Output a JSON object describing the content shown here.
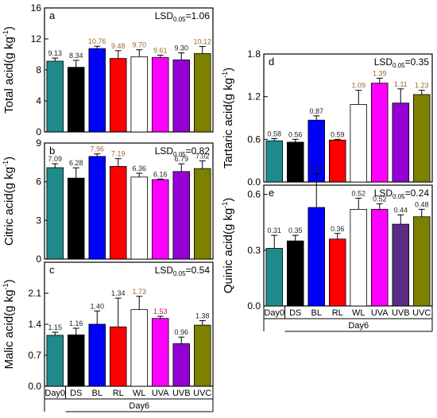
{
  "colors": {
    "label_dark": "#222222",
    "label_brown": "#a0682a",
    "label_magenta": "#c0146e"
  },
  "x_axis": {
    "day0_label": "Day0",
    "day6_label": "Day6",
    "categories": [
      "Day0",
      "DS",
      "BL",
      "RL",
      "WL",
      "UVA",
      "UVB",
      "UVC"
    ]
  },
  "chart_data": [
    {
      "type": "bar",
      "panel": "a",
      "ylabel": "Total acid(g kg-1)",
      "ylim": [
        0,
        16
      ],
      "yticks": [
        0,
        4,
        8,
        12,
        16
      ],
      "lsd": "LSD0.05=1.06",
      "categories": [
        "Day0",
        "DS",
        "BL",
        "RL",
        "WL",
        "UVA",
        "UVB",
        "UVC"
      ],
      "values": [
        9.13,
        8.34,
        10.76,
        9.48,
        9.7,
        9.61,
        9.3,
        10.12
      ],
      "errors": [
        0.4,
        0.9,
        0.3,
        1.0,
        0.9,
        0.3,
        0.9,
        0.9
      ],
      "value_labels": [
        "9.13",
        "8.34",
        "10.76",
        "9.48",
        "9.70",
        "9.61",
        "9.30",
        "10.12"
      ],
      "bar_colors": [
        "#1f8a8a",
        "#000000",
        "#0000ff",
        "#ff0000",
        "#ffffff",
        "#ff00ff",
        "#9400d3",
        "#7f7f00"
      ]
    },
    {
      "type": "bar",
      "panel": "b",
      "ylabel": "Citric acid(g kg-1)",
      "ylim": [
        0,
        9
      ],
      "yticks": [
        0,
        3,
        6,
        9
      ],
      "lsd": "LSD0.05=0.82",
      "categories": [
        "Day0",
        "DS",
        "BL",
        "RL",
        "WL",
        "UVA",
        "UVB",
        "UVC"
      ],
      "values": [
        7.09,
        6.28,
        7.96,
        7.19,
        6.36,
        6.16,
        6.79,
        7.02
      ],
      "errors": [
        0.3,
        0.8,
        0.2,
        0.6,
        0.3,
        0.05,
        0.6,
        0.6
      ],
      "value_labels": [
        "7.09",
        "6.28",
        "7.96",
        "7.19",
        "6.36",
        "6.16",
        "6.79",
        "7.02"
      ],
      "bar_colors": [
        "#1f8a8a",
        "#000000",
        "#0000ff",
        "#ff0000",
        "#ffffff",
        "#ff00ff",
        "#9400d3",
        "#7f7f00"
      ]
    },
    {
      "type": "bar",
      "panel": "c",
      "ylabel": "Malic acid(g kg-1)",
      "ylim": [
        0,
        2.8
      ],
      "yticks": [
        0.0,
        0.7,
        1.4,
        2.1
      ],
      "lsd": "LSD0.05=0.54",
      "categories": [
        "Day0",
        "DS",
        "BL",
        "RL",
        "WL",
        "UVA",
        "UVB",
        "UVC"
      ],
      "values": [
        1.15,
        1.16,
        1.4,
        1.34,
        1.73,
        1.53,
        0.96,
        1.38
      ],
      "errors": [
        0.07,
        0.15,
        0.3,
        0.65,
        0.3,
        0.05,
        0.15,
        0.1
      ],
      "value_labels": [
        "1.15",
        "1.16",
        "1.40",
        "1.34",
        "1.73",
        "1.53",
        "0.96",
        "1.38"
      ],
      "bar_colors": [
        "#1f8a8a",
        "#000000",
        "#0000ff",
        "#ff0000",
        "#ffffff",
        "#ff00ff",
        "#9400d3",
        "#7f7f00"
      ]
    },
    {
      "type": "bar",
      "panel": "d",
      "ylabel": "Tartaric acid(g kg-1)",
      "ylim": [
        0,
        1.8
      ],
      "yticks": [
        0.0,
        0.6,
        1.2,
        1.8
      ],
      "lsd": "LSD0.05=0.35",
      "categories": [
        "Day0",
        "DS",
        "BL",
        "RL",
        "WL",
        "UVA",
        "UVB",
        "UVC"
      ],
      "values": [
        0.58,
        0.56,
        0.87,
        0.59,
        1.09,
        1.39,
        1.11,
        1.23
      ],
      "errors": [
        0.03,
        0.04,
        0.06,
        0.01,
        0.2,
        0.07,
        0.2,
        0.06
      ],
      "value_labels": [
        "0.58",
        "0.56",
        "0.87",
        "0.59",
        "1.09",
        "1.39",
        "1.11",
        "1.23"
      ],
      "bar_colors": [
        "#1f8a8a",
        "#000000",
        "#0000ff",
        "#ff0000",
        "#ffffff",
        "#ff00ff",
        "#9400d3",
        "#7f7f00"
      ]
    },
    {
      "type": "bar",
      "panel": "e",
      "ylabel": "Quinic acid(g kg-1)",
      "ylim": [
        0,
        0.65
      ],
      "yticks": [
        0.0,
        0.3,
        0.6
      ],
      "lsd": "LSD0.05=0.24",
      "categories": [
        "Day0",
        "DS",
        "BL",
        "RL",
        "WL",
        "UVA",
        "UVB",
        "UVC"
      ],
      "values": [
        0.31,
        0.35,
        0.53,
        0.36,
        0.52,
        0.52,
        0.44,
        0.48
      ],
      "errors": [
        0.07,
        0.03,
        0.18,
        0.03,
        0.06,
        0.03,
        0.05,
        0.04
      ],
      "value_labels": [
        "0.31",
        "0.35",
        "0.53",
        "0.36",
        "0.52",
        "0.52",
        "0.44",
        "0.48"
      ],
      "bar_colors": [
        "#1f8a8a",
        "#000000",
        "#0000ff",
        "#ff0000",
        "#ffffff",
        "#ff00ff",
        "#5b2c83",
        "#7f7f00"
      ]
    }
  ]
}
